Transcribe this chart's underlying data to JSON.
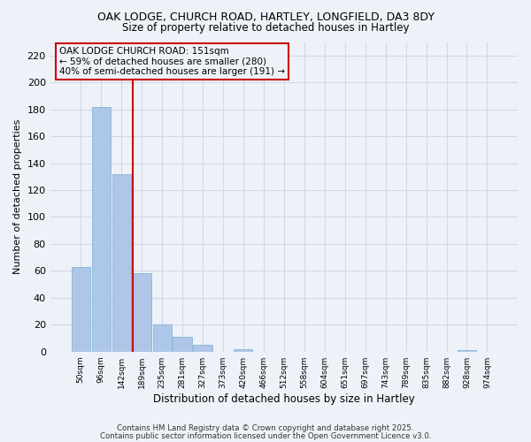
{
  "title1": "OAK LODGE, CHURCH ROAD, HARTLEY, LONGFIELD, DA3 8DY",
  "title2": "Size of property relative to detached houses in Hartley",
  "xlabel": "Distribution of detached houses by size in Hartley",
  "ylabel": "Number of detached properties",
  "categories": [
    "50sqm",
    "96sqm",
    "142sqm",
    "189sqm",
    "235sqm",
    "281sqm",
    "327sqm",
    "373sqm",
    "420sqm",
    "466sqm",
    "512sqm",
    "558sqm",
    "604sqm",
    "651sqm",
    "697sqm",
    "743sqm",
    "789sqm",
    "835sqm",
    "882sqm",
    "928sqm",
    "974sqm"
  ],
  "values": [
    63,
    182,
    132,
    58,
    20,
    11,
    5,
    0,
    2,
    0,
    0,
    0,
    0,
    0,
    0,
    0,
    0,
    0,
    0,
    1,
    0
  ],
  "bar_color": "#aec6e8",
  "bar_edge_color": "#7aafd4",
  "vline_x": 2.54,
  "vline_color": "#cc0000",
  "ylim": [
    0,
    230
  ],
  "yticks": [
    0,
    20,
    40,
    60,
    80,
    100,
    120,
    140,
    160,
    180,
    200,
    220
  ],
  "annotation_line1": "OAK LODGE CHURCH ROAD: 151sqm",
  "annotation_line2": "← 59% of detached houses are smaller (280)",
  "annotation_line3": "40% of semi-detached houses are larger (191) →",
  "annotation_box_color": "#cc0000",
  "footer1": "Contains HM Land Registry data © Crown copyright and database right 2025.",
  "footer2": "Contains public sector information licensed under the Open Government Licence v3.0.",
  "bg_color": "#eef2f8",
  "grid_color": "#d0d8e8"
}
